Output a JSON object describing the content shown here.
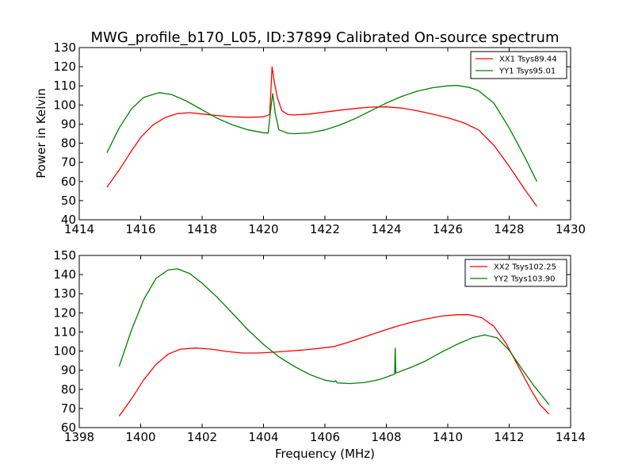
{
  "figure": {
    "title": "MWG_profile_b170_L05, ID:37899 Calibrated On-source spectrum"
  },
  "chart_data": [
    {
      "type": "line",
      "title": "MWG_profile_b170_L05, ID:37899 Calibrated On-source spectrum",
      "xlabel": "",
      "ylabel": "Power in Kelvin",
      "xlim": [
        1414,
        1430
      ],
      "ylim": [
        40,
        130
      ],
      "xticks": [
        1414,
        1416,
        1418,
        1420,
        1422,
        1424,
        1426,
        1428,
        1430
      ],
      "yticks": [
        40,
        50,
        60,
        70,
        80,
        90,
        100,
        110,
        120,
        130
      ],
      "legend_position": "top-right",
      "series": [
        {
          "name": "XX1 Tsys89.44",
          "color": "#ff0000",
          "points": [
            [
              1414.9,
              57
            ],
            [
              1415.3,
              66
            ],
            [
              1415.7,
              76
            ],
            [
              1416.0,
              83
            ],
            [
              1416.4,
              89.5
            ],
            [
              1416.8,
              93.5
            ],
            [
              1417.2,
              95.5
            ],
            [
              1417.6,
              96
            ],
            [
              1418.0,
              95.3
            ],
            [
              1418.5,
              94.5
            ],
            [
              1419.0,
              93.8
            ],
            [
              1419.5,
              93.6
            ],
            [
              1420.0,
              93.8
            ],
            [
              1420.2,
              95
            ],
            [
              1420.28,
              120
            ],
            [
              1420.35,
              112
            ],
            [
              1420.45,
              104
            ],
            [
              1420.6,
              97
            ],
            [
              1420.8,
              95
            ],
            [
              1421.0,
              94.8
            ],
            [
              1421.5,
              95.3
            ],
            [
              1422.0,
              96.3
            ],
            [
              1422.5,
              97.3
            ],
            [
              1423.0,
              98.2
            ],
            [
              1423.5,
              98.9
            ],
            [
              1424.0,
              99
            ],
            [
              1424.5,
              98.4
            ],
            [
              1425.0,
              97
            ],
            [
              1425.5,
              95.3
            ],
            [
              1426.0,
              93.3
            ],
            [
              1426.5,
              90.8
            ],
            [
              1427.0,
              87
            ],
            [
              1427.5,
              79
            ],
            [
              1428.0,
              68
            ],
            [
              1428.5,
              56
            ],
            [
              1428.9,
              47
            ]
          ]
        },
        {
          "name": "YY1 Tsys95.01",
          "color": "#008000",
          "points": [
            [
              1414.9,
              75
            ],
            [
              1415.3,
              88
            ],
            [
              1415.7,
              98
            ],
            [
              1416.1,
              104
            ],
            [
              1416.6,
              106.5
            ],
            [
              1417.0,
              105.5
            ],
            [
              1417.5,
              102
            ],
            [
              1418.0,
              97.5
            ],
            [
              1418.5,
              93
            ],
            [
              1419.0,
              89.5
            ],
            [
              1419.5,
              87
            ],
            [
              1420.0,
              85.5
            ],
            [
              1420.15,
              85.3
            ],
            [
              1420.25,
              100
            ],
            [
              1420.3,
              106
            ],
            [
              1420.38,
              96
            ],
            [
              1420.5,
              87
            ],
            [
              1420.8,
              85.2
            ],
            [
              1421.0,
              85
            ],
            [
              1421.5,
              85.4
            ],
            [
              1422.0,
              87
            ],
            [
              1422.5,
              89.6
            ],
            [
              1423.0,
              93
            ],
            [
              1423.5,
              97
            ],
            [
              1424.0,
              101
            ],
            [
              1424.5,
              104.5
            ],
            [
              1425.0,
              107.2
            ],
            [
              1425.5,
              109
            ],
            [
              1426.0,
              110
            ],
            [
              1426.3,
              110.2
            ],
            [
              1426.7,
              109.2
            ],
            [
              1427.0,
              107.5
            ],
            [
              1427.5,
              101
            ],
            [
              1428.0,
              88
            ],
            [
              1428.5,
              73
            ],
            [
              1428.9,
              60
            ]
          ]
        }
      ]
    },
    {
      "type": "line",
      "title": "",
      "xlabel": "Frequency (MHz)",
      "ylabel": "",
      "xlim": [
        1398,
        1414
      ],
      "ylim": [
        60,
        150
      ],
      "xticks": [
        1398,
        1400,
        1402,
        1404,
        1406,
        1408,
        1410,
        1412,
        1414
      ],
      "yticks": [
        60,
        70,
        80,
        90,
        100,
        110,
        120,
        130,
        140,
        150
      ],
      "legend_position": "top-right",
      "series": [
        {
          "name": "XX2 Tsys102.25",
          "color": "#ff0000",
          "points": [
            [
              1399.3,
              66
            ],
            [
              1399.7,
              75
            ],
            [
              1400.1,
              85
            ],
            [
              1400.5,
              93
            ],
            [
              1400.9,
              98.5
            ],
            [
              1401.3,
              101
            ],
            [
              1401.8,
              101.6
            ],
            [
              1402.3,
              101
            ],
            [
              1402.8,
              99.8
            ],
            [
              1403.3,
              99
            ],
            [
              1403.8,
              99
            ],
            [
              1404.3,
              99.4
            ],
            [
              1404.8,
              100
            ],
            [
              1405.3,
              100.6
            ],
            [
              1405.8,
              101.4
            ],
            [
              1406.3,
              102.4
            ],
            [
              1406.8,
              104.8
            ],
            [
              1407.3,
              107.5
            ],
            [
              1407.8,
              110.2
            ],
            [
              1408.3,
              112.8
            ],
            [
              1408.8,
              115
            ],
            [
              1409.3,
              116.8
            ],
            [
              1409.8,
              118.3
            ],
            [
              1410.3,
              119
            ],
            [
              1410.7,
              119
            ],
            [
              1411.1,
              117.5
            ],
            [
              1411.5,
              113
            ],
            [
              1411.9,
              104
            ],
            [
              1412.3,
              92
            ],
            [
              1412.7,
              80
            ],
            [
              1413.0,
              72
            ],
            [
              1413.3,
              67
            ]
          ]
        },
        {
          "name": "YY2 Tsys103.90",
          "color": "#008000",
          "points": [
            [
              1399.3,
              92
            ],
            [
              1399.7,
              111
            ],
            [
              1400.1,
              127
            ],
            [
              1400.5,
              138
            ],
            [
              1400.9,
              142.5
            ],
            [
              1401.2,
              143
            ],
            [
              1401.6,
              140.5
            ],
            [
              1402.0,
              135.5
            ],
            [
              1402.5,
              128
            ],
            [
              1403.0,
              119.5
            ],
            [
              1403.5,
              111
            ],
            [
              1404.0,
              103.5
            ],
            [
              1404.5,
              97
            ],
            [
              1405.0,
              92
            ],
            [
              1405.5,
              87.8
            ],
            [
              1406.0,
              84.8
            ],
            [
              1406.3,
              84
            ],
            [
              1406.35,
              84.6
            ],
            [
              1406.4,
              83.4
            ],
            [
              1406.8,
              83
            ],
            [
              1407.3,
              83.6
            ],
            [
              1407.8,
              85.2
            ],
            [
              1408.2,
              87.6
            ],
            [
              1408.27,
              88
            ],
            [
              1408.29,
              101.5
            ],
            [
              1408.31,
              88.5
            ],
            [
              1408.8,
              91.5
            ],
            [
              1409.3,
              95
            ],
            [
              1409.8,
              99.5
            ],
            [
              1410.3,
              103.5
            ],
            [
              1410.8,
              107
            ],
            [
              1411.2,
              108.5
            ],
            [
              1411.6,
              107
            ],
            [
              1412.0,
              100.5
            ],
            [
              1412.4,
              91
            ],
            [
              1412.8,
              82
            ],
            [
              1413.3,
              72
            ]
          ]
        }
      ]
    }
  ]
}
